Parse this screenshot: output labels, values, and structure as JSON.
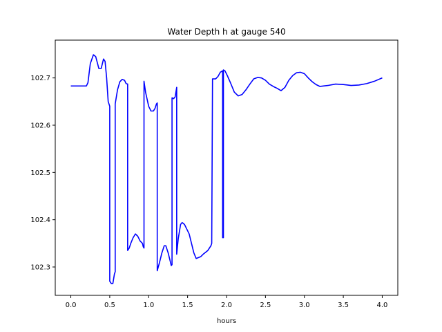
{
  "chart_data": {
    "type": "line",
    "title": "Water Depth h at gauge 540",
    "xlabel": "hours",
    "ylabel": "",
    "xlim": [
      -0.2,
      4.2
    ],
    "ylim": [
      102.24,
      102.78
    ],
    "xticks": [
      0.0,
      0.5,
      1.0,
      1.5,
      2.0,
      2.5,
      3.0,
      3.5,
      4.0
    ],
    "xtick_labels": [
      "0.0",
      "0.5",
      "1.0",
      "1.5",
      "2.0",
      "2.5",
      "3.0",
      "3.5",
      "4.0"
    ],
    "yticks": [
      102.3,
      102.4,
      102.5,
      102.6,
      102.7
    ],
    "ytick_labels": [
      "102.3",
      "102.4",
      "102.5",
      "102.6",
      "102.7"
    ],
    "grid": false,
    "line_color": "#0000ff",
    "series": [
      {
        "x": [
          0.0,
          0.1,
          0.2,
          0.22,
          0.25,
          0.29,
          0.32,
          0.36,
          0.39,
          0.42,
          0.44,
          0.46,
          0.48,
          0.5,
          0.5,
          0.52,
          0.54,
          0.56,
          0.57,
          0.57,
          0.6,
          0.63,
          0.66,
          0.69,
          0.71,
          0.73,
          0.73,
          0.75,
          0.77,
          0.8,
          0.83,
          0.86,
          0.89,
          0.92,
          0.93,
          0.94,
          0.94,
          0.96,
          1.0,
          1.03,
          1.06,
          1.08,
          1.1,
          1.11,
          1.11,
          1.14,
          1.17,
          1.2,
          1.22,
          1.25,
          1.28,
          1.29,
          1.3,
          1.3,
          1.32,
          1.34,
          1.36,
          1.36,
          1.38,
          1.41,
          1.43,
          1.46,
          1.49,
          1.52,
          1.55,
          1.58,
          1.61,
          1.64,
          1.67,
          1.7,
          1.73,
          1.76,
          1.8,
          1.81,
          1.82,
          1.84,
          1.86,
          1.89,
          1.92,
          1.94,
          1.95,
          1.95,
          1.96,
          1.96,
          1.98,
          2.01,
          2.05,
          2.1,
          2.15,
          2.2,
          2.25,
          2.3,
          2.35,
          2.4,
          2.45,
          2.5,
          2.55,
          2.6,
          2.65,
          2.7,
          2.75,
          2.8,
          2.85,
          2.9,
          2.95,
          3.0,
          3.05,
          3.1,
          3.15,
          3.2,
          3.3,
          3.4,
          3.5,
          3.6,
          3.7,
          3.8,
          3.9,
          4.0
        ],
        "y": [
          102.683,
          102.683,
          102.683,
          102.69,
          102.73,
          102.749,
          102.745,
          102.72,
          102.72,
          102.74,
          102.735,
          102.7,
          102.65,
          102.64,
          102.27,
          102.265,
          102.265,
          102.285,
          102.29,
          102.645,
          102.675,
          102.692,
          102.697,
          102.695,
          102.688,
          102.687,
          102.335,
          102.34,
          102.35,
          102.362,
          102.37,
          102.365,
          102.355,
          102.35,
          102.343,
          102.34,
          102.693,
          102.67,
          102.64,
          102.63,
          102.63,
          102.635,
          102.645,
          102.647,
          102.292,
          102.31,
          102.33,
          102.345,
          102.345,
          102.33,
          102.31,
          102.303,
          102.305,
          102.658,
          102.656,
          102.66,
          102.68,
          102.327,
          102.36,
          102.39,
          102.394,
          102.39,
          102.38,
          102.37,
          102.35,
          102.33,
          102.318,
          102.32,
          102.322,
          102.327,
          102.331,
          102.335,
          102.345,
          102.35,
          102.698,
          102.698,
          102.698,
          102.703,
          102.712,
          102.714,
          102.715,
          102.362,
          102.362,
          102.717,
          102.715,
          102.705,
          102.69,
          102.67,
          102.662,
          102.665,
          102.675,
          102.687,
          102.698,
          102.701,
          102.7,
          102.695,
          102.687,
          102.682,
          102.678,
          102.673,
          102.68,
          102.695,
          102.705,
          102.711,
          102.712,
          102.709,
          102.7,
          102.692,
          102.686,
          102.682,
          102.684,
          102.687,
          102.686,
          102.684,
          102.685,
          102.688,
          102.693,
          102.7
        ]
      }
    ]
  }
}
